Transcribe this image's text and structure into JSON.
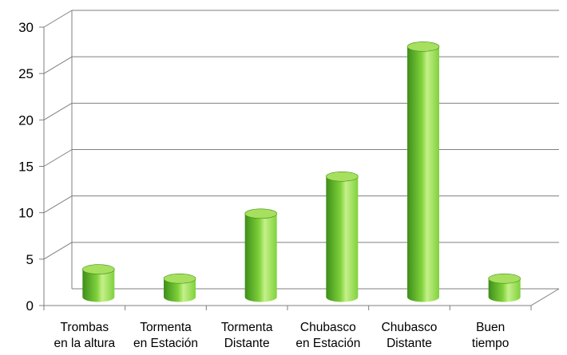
{
  "chart_data": {
    "type": "bar",
    "categories": [
      [
        "Trombas",
        "en la altura"
      ],
      [
        "Tormenta",
        "en Estación"
      ],
      [
        "Tormenta",
        "Distante"
      ],
      [
        "Chubasco",
        "en Estación"
      ],
      [
        "Chubasco",
        "Distante"
      ],
      [
        "Buen",
        "tiempo"
      ]
    ],
    "values": [
      3,
      2,
      9,
      13,
      27,
      2
    ],
    "ylim": [
      0,
      30
    ],
    "yticks": [
      "0",
      "5",
      "10",
      "15",
      "20",
      "25",
      "30"
    ],
    "grid": true,
    "style": "3d-cylinder",
    "colors": {
      "bar_dark": "#3e8e1a",
      "bar_mid": "#7fd13b",
      "bar_light": "#c5f08a",
      "bar_top": "#a6e05e",
      "grid": "#7f7f7f",
      "text": "#000000"
    }
  }
}
